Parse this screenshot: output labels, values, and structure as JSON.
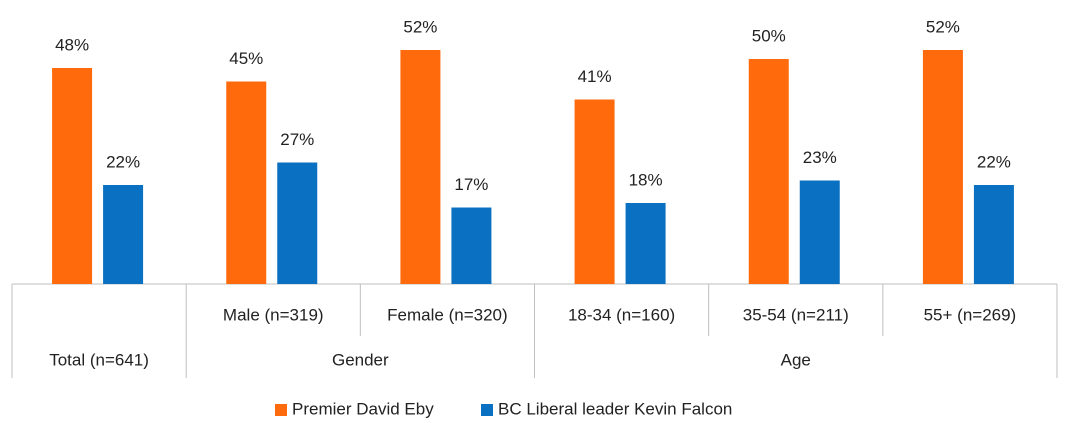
{
  "chart_data": {
    "type": "bar",
    "categories": [
      "Total (n=641)",
      "Male (n=319)",
      "Female (n=320)",
      "18-34 (n=160)",
      "35-54 (n=211)",
      "55+ (n=269)"
    ],
    "groups": [
      {
        "name": "Gender",
        "first": 1,
        "last": 2
      },
      {
        "name": "Age",
        "first": 3,
        "last": 5
      }
    ],
    "series": [
      {
        "name": "Premier David Eby",
        "color": "#ff6a0d",
        "values": [
          48,
          45,
          52,
          41,
          50,
          52
        ],
        "value_labels": [
          "48%",
          "45%",
          "52%",
          "41%",
          "50%",
          "52%"
        ]
      },
      {
        "name": "BC Liberal leader Kevin Falcon",
        "color": "#0a70c1",
        "values": [
          22,
          27,
          17,
          18,
          23,
          22
        ],
        "value_labels": [
          "22%",
          "27%",
          "17%",
          "18%",
          "23%",
          "22%"
        ]
      }
    ],
    "legend": "bottom"
  }
}
